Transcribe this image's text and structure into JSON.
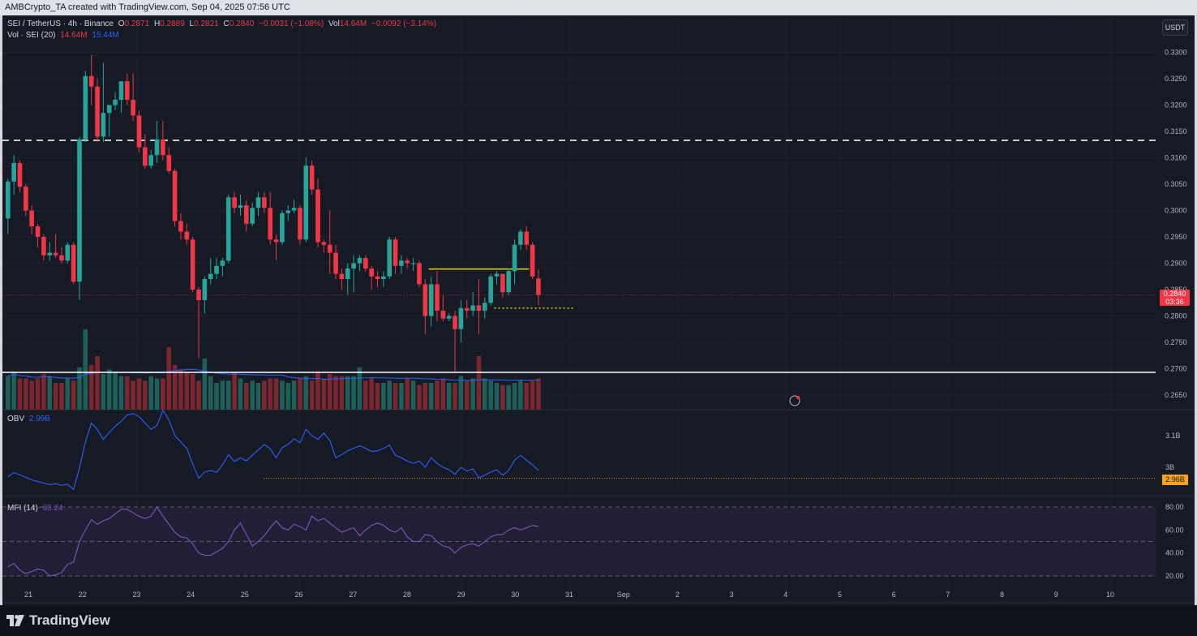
{
  "header": {
    "text": "AMBCrypto_TA created with TradingView.com, Sep 04, 2025 07:56 UTC"
  },
  "legend": {
    "symbol": "SEI / TetherUS · 4h · Binance",
    "o_label": "O",
    "o": "0.2871",
    "h_label": "H",
    "h": "0.2889",
    "l_label": "L",
    "l": "0.2821",
    "c_label": "C",
    "c": "0.2840",
    "change": "−0.0031 (−1.08%)",
    "vol_label": "Vol",
    "vol": "14.64M",
    "vol_change": "−0.0092 (−3.14%)",
    "vol_ind": "Vol · SEI (20)",
    "vol_val1": "14.64M",
    "vol_val2": "15.44M"
  },
  "currency_button": "USDT",
  "price_tag": {
    "price": "0.2840",
    "countdown": "03:36"
  },
  "obv": {
    "label": "OBV",
    "value": "2.99B",
    "tag": "2.96B"
  },
  "mfi": {
    "label": "MFI (14)",
    "value": "63.24"
  },
  "footer": {
    "brand": "TradingView"
  },
  "colors": {
    "up": "#26a69a",
    "down": "#f23645",
    "accent": "#2962ff",
    "obv_level": "#f5a31a",
    "resistance": "#e6d600",
    "mfi_line": "#7e57c2"
  },
  "chart_data": {
    "type": "candlestick",
    "interval": "4h",
    "price_axis": {
      "ticks": [
        "0.3300",
        "0.3250",
        "0.3200",
        "0.3150",
        "0.3100",
        "0.3050",
        "0.3000",
        "0.2950",
        "0.2900",
        "0.2850",
        "0.2800",
        "0.2750",
        "0.2700",
        "0.2650"
      ]
    },
    "obv_axis": {
      "ticks": [
        "3.1B",
        "3B"
      ]
    },
    "mfi_axis": {
      "ticks": [
        "80.00",
        "60.00",
        "40.00",
        "20.00"
      ],
      "band": [
        20,
        80
      ]
    },
    "x_labels": [
      "21",
      "22",
      "23",
      "24",
      "25",
      "26",
      "27",
      "28",
      "29",
      "30",
      "31",
      "Sep",
      "2",
      "3",
      "4",
      "5",
      "6",
      "7",
      "8",
      "9",
      "10"
    ],
    "levels": {
      "dashed_resistance": 0.3133,
      "support": 0.2693,
      "breakout_level": 0.2889,
      "dotted_support": 0.2815
    },
    "candles": [
      [
        0.2985,
        0.306,
        0.2955,
        0.3055
      ],
      [
        0.3055,
        0.3105,
        0.303,
        0.309
      ],
      [
        0.309,
        0.3095,
        0.3035,
        0.3045
      ],
      [
        0.3045,
        0.305,
        0.299,
        0.3
      ],
      [
        0.3,
        0.301,
        0.2955,
        0.297
      ],
      [
        0.297,
        0.2975,
        0.293,
        0.295
      ],
      [
        0.295,
        0.2955,
        0.2905,
        0.2915
      ],
      [
        0.2915,
        0.294,
        0.2905,
        0.292
      ],
      [
        0.292,
        0.2955,
        0.291,
        0.2915
      ],
      [
        0.2915,
        0.293,
        0.29,
        0.2905
      ],
      [
        0.2905,
        0.294,
        0.29,
        0.2935
      ],
      [
        0.2935,
        0.294,
        0.286,
        0.2865
      ],
      [
        0.2865,
        0.314,
        0.283,
        0.3135
      ],
      [
        0.3135,
        0.3265,
        0.313,
        0.3255
      ],
      [
        0.3255,
        0.3295,
        0.32,
        0.3235
      ],
      [
        0.3235,
        0.325,
        0.313,
        0.314
      ],
      [
        0.314,
        0.328,
        0.313,
        0.3185
      ],
      [
        0.3185,
        0.32,
        0.314,
        0.32
      ],
      [
        0.32,
        0.3225,
        0.319,
        0.321
      ],
      [
        0.321,
        0.3245,
        0.3185,
        0.3245
      ],
      [
        0.3245,
        0.326,
        0.32,
        0.321
      ],
      [
        0.321,
        0.326,
        0.317,
        0.318
      ],
      [
        0.318,
        0.319,
        0.311,
        0.312
      ],
      [
        0.312,
        0.3145,
        0.308,
        0.3085
      ],
      [
        0.3085,
        0.3115,
        0.308,
        0.3105
      ],
      [
        0.3105,
        0.317,
        0.309,
        0.3135
      ],
      [
        0.3135,
        0.317,
        0.3095,
        0.3105
      ],
      [
        0.3105,
        0.312,
        0.307,
        0.3075
      ],
      [
        0.3075,
        0.308,
        0.297,
        0.298
      ],
      [
        0.298,
        0.2995,
        0.2945,
        0.296
      ],
      [
        0.296,
        0.2975,
        0.2935,
        0.2945
      ],
      [
        0.2945,
        0.295,
        0.2845,
        0.285
      ],
      [
        0.285,
        0.2855,
        0.272,
        0.283
      ],
      [
        0.283,
        0.2875,
        0.2805,
        0.287
      ],
      [
        0.287,
        0.291,
        0.286,
        0.288
      ],
      [
        0.288,
        0.291,
        0.287,
        0.2895
      ],
      [
        0.2895,
        0.291,
        0.2875,
        0.2905
      ],
      [
        0.2905,
        0.303,
        0.29,
        0.3025
      ],
      [
        0.3025,
        0.3035,
        0.2995,
        0.3005
      ],
      [
        0.3005,
        0.303,
        0.299,
        0.301
      ],
      [
        0.301,
        0.302,
        0.296,
        0.2975
      ],
      [
        0.2975,
        0.3015,
        0.297,
        0.3005
      ],
      [
        0.3005,
        0.3035,
        0.299,
        0.3025
      ],
      [
        0.3025,
        0.3035,
        0.2995,
        0.3005
      ],
      [
        0.3005,
        0.3035,
        0.2935,
        0.2945
      ],
      [
        0.2945,
        0.2955,
        0.2905,
        0.294
      ],
      [
        0.294,
        0.3,
        0.2935,
        0.2995
      ],
      [
        0.2995,
        0.301,
        0.298,
        0.3
      ],
      [
        0.3,
        0.302,
        0.2995,
        0.3005
      ],
      [
        0.3005,
        0.301,
        0.2935,
        0.2945
      ],
      [
        0.2945,
        0.31,
        0.294,
        0.3085
      ],
      [
        0.3085,
        0.3095,
        0.303,
        0.304
      ],
      [
        0.304,
        0.306,
        0.293,
        0.294
      ],
      [
        0.294,
        0.2945,
        0.292,
        0.2935
      ],
      [
        0.2935,
        0.3,
        0.288,
        0.292
      ],
      [
        0.292,
        0.2935,
        0.287,
        0.288
      ],
      [
        0.288,
        0.289,
        0.285,
        0.287
      ],
      [
        0.287,
        0.29,
        0.284,
        0.289
      ],
      [
        0.289,
        0.2915,
        0.2845,
        0.29
      ],
      [
        0.29,
        0.2915,
        0.2885,
        0.291
      ],
      [
        0.291,
        0.2915,
        0.2885,
        0.289
      ],
      [
        0.289,
        0.2895,
        0.285,
        0.2875
      ],
      [
        0.2875,
        0.2885,
        0.2855,
        0.287
      ],
      [
        0.287,
        0.2885,
        0.2855,
        0.2875
      ],
      [
        0.2875,
        0.295,
        0.287,
        0.2945
      ],
      [
        0.2945,
        0.295,
        0.288,
        0.2895
      ],
      [
        0.2895,
        0.2915,
        0.288,
        0.2905
      ],
      [
        0.2905,
        0.291,
        0.289,
        0.29
      ],
      [
        0.29,
        0.291,
        0.2885,
        0.29
      ],
      [
        0.29,
        0.2905,
        0.2855,
        0.286
      ],
      [
        0.286,
        0.287,
        0.2765,
        0.28
      ],
      [
        0.28,
        0.2875,
        0.278,
        0.286
      ],
      [
        0.286,
        0.2885,
        0.279,
        0.281
      ],
      [
        0.281,
        0.284,
        0.279,
        0.2795
      ],
      [
        0.2795,
        0.2805,
        0.279,
        0.28
      ],
      [
        0.28,
        0.281,
        0.2695,
        0.2775
      ],
      [
        0.2775,
        0.283,
        0.275,
        0.2815
      ],
      [
        0.2815,
        0.283,
        0.2795,
        0.281
      ],
      [
        0.281,
        0.2845,
        0.28,
        0.282
      ],
      [
        0.282,
        0.287,
        0.2765,
        0.281
      ],
      [
        0.281,
        0.2835,
        0.2795,
        0.2825
      ],
      [
        0.2825,
        0.288,
        0.282,
        0.2875
      ],
      [
        0.2875,
        0.2885,
        0.286,
        0.288
      ],
      [
        0.288,
        0.288,
        0.2835,
        0.2845
      ],
      [
        0.2845,
        0.289,
        0.284,
        0.2885
      ],
      [
        0.2885,
        0.2945,
        0.286,
        0.2935
      ],
      [
        0.2935,
        0.2965,
        0.2925,
        0.296
      ],
      [
        0.296,
        0.297,
        0.2925,
        0.2935
      ],
      [
        0.2935,
        0.294,
        0.287,
        0.2875
      ],
      [
        0.2871,
        0.2889,
        0.2821,
        0.284
      ]
    ],
    "volume_millions": [
      15,
      17,
      14,
      14,
      13,
      14,
      16,
      15,
      12,
      12,
      14,
      13,
      19,
      36,
      20,
      24,
      16,
      18,
      17,
      15,
      15,
      13,
      14,
      13,
      15,
      14,
      14,
      28,
      20,
      18,
      17,
      16,
      13,
      23,
      15,
      12,
      13,
      13,
      17,
      14,
      12,
      13,
      12,
      13,
      14,
      14,
      13,
      12,
      13,
      14,
      15,
      13,
      17,
      14,
      16,
      15,
      15,
      15,
      15,
      19,
      13,
      14,
      12,
      12,
      13,
      12,
      12,
      14,
      13,
      11,
      12,
      12,
      13,
      14,
      12,
      12,
      15,
      13,
      14,
      24,
      14,
      13,
      12,
      11,
      11,
      12,
      13,
      12,
      13,
      14
    ],
    "obv_billions": [
      2.97,
      2.983,
      2.976,
      2.968,
      2.96,
      2.955,
      2.95,
      2.945,
      2.948,
      2.943,
      2.946,
      2.93,
      2.998,
      3.08,
      3.14,
      3.12,
      3.088,
      3.11,
      3.13,
      3.145,
      3.165,
      3.17,
      3.16,
      3.14,
      3.12,
      3.132,
      3.18,
      3.15,
      3.1,
      3.08,
      3.06,
      3.01,
      2.965,
      2.985,
      2.99,
      2.984,
      3.008,
      3.04,
      3.018,
      3.03,
      3.02,
      3.038,
      3.055,
      3.072,
      3.058,
      3.03,
      3.062,
      3.072,
      3.09,
      3.078,
      3.12,
      3.1,
      3.088,
      3.108,
      3.085,
      3.03,
      3.04,
      3.052,
      3.06,
      3.068,
      3.06,
      3.05,
      3.052,
      3.06,
      3.07,
      3.038,
      3.03,
      3.02,
      3.012,
      3.02,
      3.0,
      3.03,
      3.012,
      3.0,
      2.992,
      2.978,
      3.0,
      2.988,
      2.995,
      2.967,
      2.975,
      2.985,
      2.992,
      2.975,
      2.99,
      3.022,
      3.038,
      3.022,
      3.008,
      2.99
    ],
    "mfi": [
      28,
      31,
      25,
      22,
      24,
      26,
      25,
      20,
      21,
      23,
      30,
      32,
      50,
      60,
      69,
      65,
      68,
      70,
      74,
      78,
      78,
      75,
      72,
      70,
      72,
      80,
      72,
      65,
      58,
      54,
      53,
      48,
      40,
      38,
      38,
      41,
      44,
      50,
      60,
      66,
      56,
      46,
      50,
      55,
      62,
      68,
      62,
      60,
      65,
      63,
      60,
      72,
      68,
      70,
      66,
      62,
      58,
      60,
      62,
      55,
      60,
      64,
      66,
      64,
      60,
      58,
      62,
      54,
      50,
      50,
      56,
      55,
      50,
      46,
      45,
      40,
      45,
      47,
      48,
      46,
      50,
      54,
      56,
      56,
      60,
      62,
      60,
      62,
      64,
      63
    ]
  }
}
